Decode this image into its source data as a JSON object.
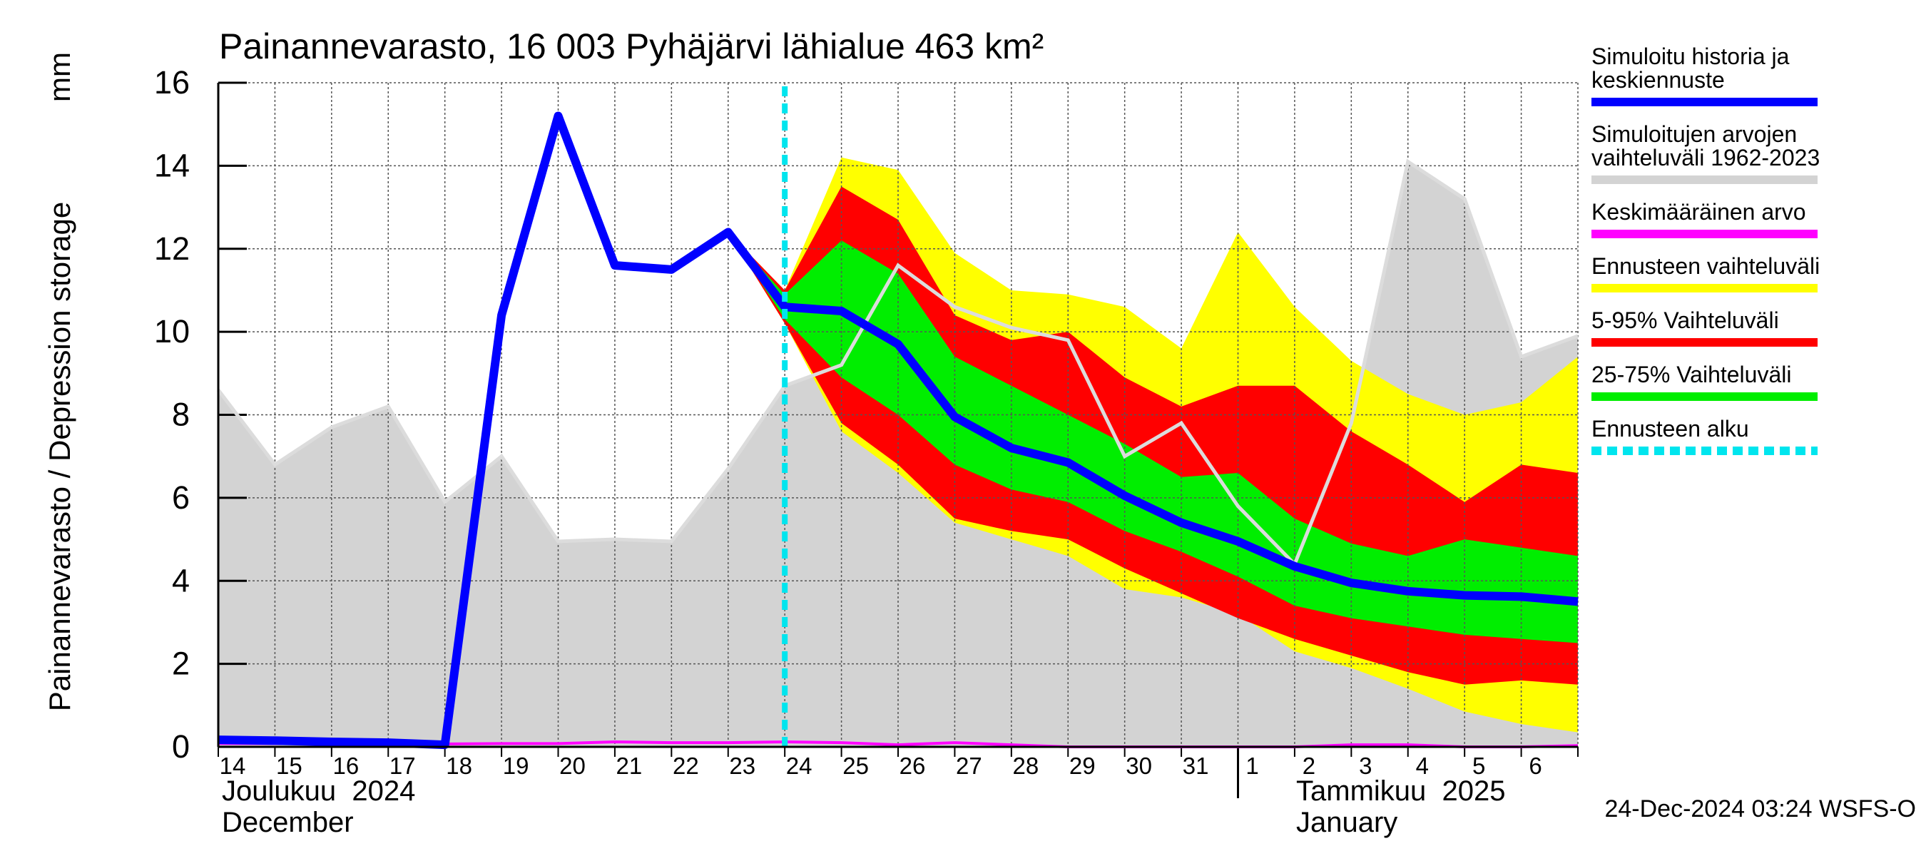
{
  "chart_data": {
    "type": "band",
    "title": "Painannevarasto, 16 003 Pyhäjärvi lähialue 463 km²",
    "y_label": "Painannevarasto / Depression storage",
    "y_unit": "mm",
    "months": [
      {
        "name": "Joulukuu  2024",
        "name_en": "December"
      },
      {
        "name": "Tammikuu  2025",
        "name_en": "January"
      }
    ],
    "footer": "24-Dec-2024 03:24 WSFS-O",
    "categories": [
      "14",
      "15",
      "16",
      "17",
      "18",
      "19",
      "20",
      "21",
      "22",
      "23",
      "24",
      "25",
      "26",
      "27",
      "28",
      "29",
      "30",
      "31",
      "1",
      "2",
      "3",
      "4",
      "5",
      "6",
      null
    ],
    "ylim": [
      0,
      16
    ],
    "yticks": [
      0,
      2,
      4,
      6,
      8,
      10,
      12,
      14,
      16
    ],
    "grid": true,
    "series": [
      {
        "name": "Simuloitu historia ja\nkeskiennuste",
        "kind": "line",
        "color": "#0000ff",
        "values": [
          0.17,
          0.15,
          0.12,
          0.1,
          0.05,
          10.4,
          15.2,
          11.6,
          11.5,
          12.4,
          10.6,
          10.5,
          9.7,
          7.95,
          7.2,
          6.85,
          6.05,
          5.4,
          4.95,
          4.35,
          3.95,
          3.75,
          3.65,
          3.62,
          3.5
        ]
      },
      {
        "name": "Simuloitujen arvojen\nvaihteluväli 1962-2023",
        "kind": "band",
        "color": "#d3d3d3",
        "lower": [
          0,
          0,
          0,
          0,
          0,
          0,
          0,
          0,
          0,
          0,
          0,
          0,
          0,
          0,
          0,
          0,
          0,
          0,
          0,
          0,
          0,
          0,
          0,
          0,
          0
        ],
        "upper": [
          8.6,
          6.8,
          7.7,
          8.2,
          5.9,
          7.0,
          4.95,
          5.0,
          4.95,
          6.7,
          8.7,
          9.2,
          11.6,
          10.6,
          10.1,
          9.8,
          7.0,
          7.8,
          5.8,
          4.4,
          7.8,
          14.1,
          13.2,
          9.4,
          9.9
        ]
      },
      {
        "name": "Keskimääräinen arvo",
        "kind": "line",
        "color": "#ff00ff",
        "values": [
          0.08,
          0.08,
          0.07,
          0.07,
          0.07,
          0.08,
          0.08,
          0.12,
          0.1,
          0.1,
          0.12,
          0.1,
          0.05,
          0.1,
          0.05,
          0.0,
          0.0,
          0.0,
          0.0,
          0.0,
          0.05,
          0.05,
          0.0,
          0.0,
          0.03
        ]
      },
      {
        "name": "Ennusteen vaihteluväli",
        "kind": "band",
        "color": "#ffff00",
        "lower": [
          null,
          null,
          null,
          null,
          null,
          null,
          null,
          null,
          null,
          12.4,
          10.2,
          7.6,
          6.6,
          5.4,
          5.0,
          4.6,
          3.8,
          3.6,
          3.2,
          2.3,
          1.9,
          1.4,
          0.85,
          0.55,
          0.35
        ],
        "upper": [
          null,
          null,
          null,
          null,
          null,
          null,
          null,
          null,
          null,
          12.4,
          11.0,
          14.2,
          13.9,
          11.9,
          11.0,
          10.9,
          10.6,
          9.6,
          12.4,
          10.6,
          9.3,
          8.5,
          8.0,
          8.3,
          9.4
        ]
      },
      {
        "name": "5-95% Vaihteluväli",
        "kind": "band",
        "color": "#ff0000",
        "lower": [
          null,
          null,
          null,
          null,
          null,
          null,
          null,
          null,
          null,
          12.4,
          10.2,
          7.8,
          6.8,
          5.5,
          5.2,
          5.0,
          4.3,
          3.7,
          3.1,
          2.6,
          2.2,
          1.8,
          1.5,
          1.6,
          1.5
        ],
        "upper": [
          null,
          null,
          null,
          null,
          null,
          null,
          null,
          null,
          null,
          12.4,
          11.0,
          13.5,
          12.7,
          10.4,
          9.8,
          10.0,
          8.9,
          8.2,
          8.7,
          8.7,
          7.6,
          6.8,
          5.9,
          6.8,
          6.6
        ]
      },
      {
        "name": "25-75% Vaihteluväli",
        "kind": "band",
        "color": "#00ee00",
        "lower": [
          null,
          null,
          null,
          null,
          null,
          null,
          null,
          null,
          null,
          12.4,
          10.3,
          8.9,
          8.0,
          6.8,
          6.2,
          5.9,
          5.2,
          4.7,
          4.1,
          3.4,
          3.1,
          2.9,
          2.7,
          2.6,
          2.5
        ],
        "upper": [
          null,
          null,
          null,
          null,
          null,
          null,
          null,
          null,
          null,
          12.4,
          10.9,
          12.2,
          11.4,
          9.4,
          8.7,
          8.0,
          7.3,
          6.5,
          6.6,
          5.5,
          4.9,
          4.6,
          5.0,
          4.8,
          4.6
        ]
      }
    ],
    "forecast_start": {
      "name": "Ennusteen alku",
      "color": "#00e5ee",
      "x": 10
    }
  }
}
